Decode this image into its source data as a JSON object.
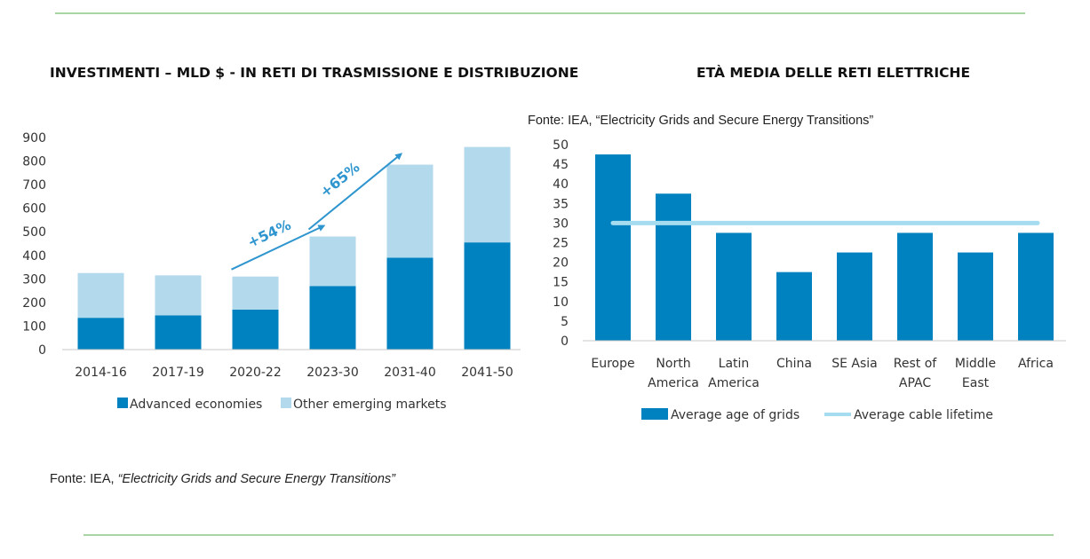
{
  "page": {
    "left_title": "INVESTIMENTI – MLD $ - IN RETI DI TRASMISSIONE E DISTRIBUZIONE",
    "right_title": "ETÀ MEDIA DELLE RETI ELETTRICHE",
    "right_source": "Fonte: IEA, “Electricity Grids and Secure Energy Transitions”",
    "left_source_prefix": "Fonte: IEA, ",
    "left_source_italic": "“Electricity Grids and Secure Energy Transitions”"
  },
  "colors": {
    "dark_blue": "#0082c0",
    "light_blue": "#b3d9ec",
    "arrow_blue": "#2f95cf",
    "lifetime_line": "#a6dcef",
    "rule_green": "#a9d5a4"
  },
  "chart_data": [
    {
      "type": "bar",
      "stacked": true,
      "title": "INVESTIMENTI – MLD $ - IN RETI DI TRASMISSIONE E DISTRIBUZIONE",
      "categories": [
        "2014-16",
        "2017-19",
        "2020-22",
        "2023-30",
        "2031-40",
        "2041-50"
      ],
      "series": [
        {
          "name": "Advanced economies",
          "values": [
            135,
            145,
            170,
            270,
            390,
            455
          ]
        },
        {
          "name": "Other emerging markets",
          "values": [
            190,
            170,
            140,
            210,
            395,
            405
          ]
        }
      ],
      "ylim": [
        0,
        900
      ],
      "yticks": [
        "0",
        "100",
        "200",
        "300",
        "400",
        "500",
        "600",
        "700",
        "800",
        "900"
      ],
      "grid": false,
      "legend": "bottom",
      "annotations": [
        {
          "text": "+54%",
          "from": "2020-22",
          "to": "2023-30"
        },
        {
          "text": "+65%",
          "from": "2023-30",
          "to": "2031-40"
        }
      ]
    },
    {
      "type": "bar",
      "title": "ETÀ MEDIA DELLE RETI ELETTRICHE",
      "categories": [
        [
          "Europe"
        ],
        [
          "North",
          "America"
        ],
        [
          "Latin",
          "America"
        ],
        [
          "China"
        ],
        [
          "SE Asia"
        ],
        [
          "Rest of",
          "APAC"
        ],
        [
          "Middle",
          "East"
        ],
        [
          "Africa"
        ]
      ],
      "series": [
        {
          "name": "Average age of grids",
          "values": [
            47.5,
            37.5,
            27.5,
            17.5,
            22.5,
            27.5,
            22.5,
            27.5
          ]
        }
      ],
      "reference_line": {
        "name": "Average cable lifetime",
        "value": 30
      },
      "ylim": [
        0,
        50
      ],
      "yticks": [
        "0",
        "5",
        "10",
        "15",
        "20",
        "25",
        "30",
        "35",
        "40",
        "45",
        "50"
      ],
      "grid": false,
      "legend": "bottom"
    }
  ]
}
